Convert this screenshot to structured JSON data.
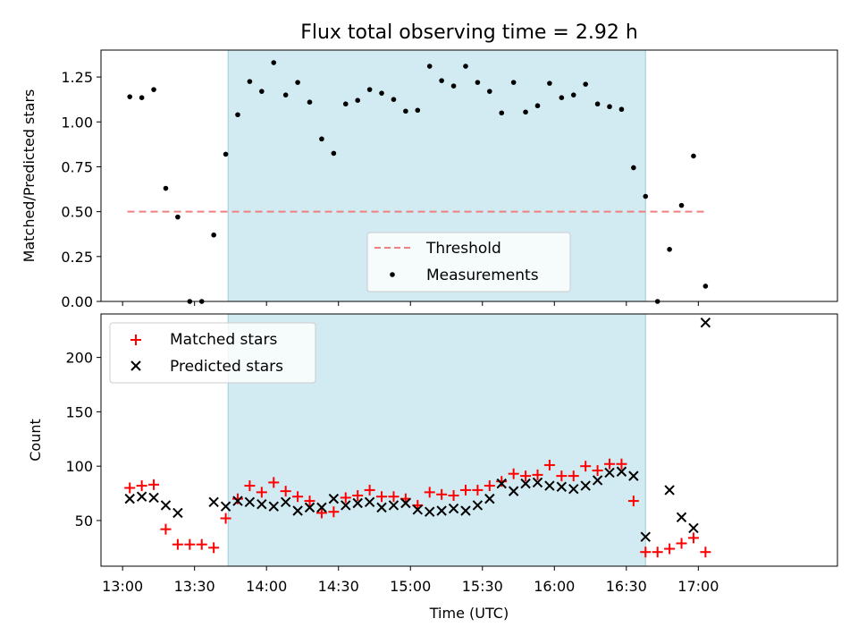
{
  "chart_data": [
    {
      "type": "scatter",
      "title": "Flux total observing time = 2.92 h",
      "xlabel": "",
      "ylabel": "Matched/Predicted stars",
      "ylim": [
        0,
        1.4
      ],
      "yticks": [
        "0.00",
        "0.25",
        "0.50",
        "0.75",
        "1.00",
        "1.25"
      ],
      "ytick_values": [
        0,
        0.25,
        0.5,
        0.75,
        1.0,
        1.25
      ],
      "xlim_minutes": [
        771,
        1078
      ],
      "shaded_span": [
        "13:44",
        "16:38"
      ],
      "shaded_color": "#add8e6",
      "threshold": {
        "name": "Threshold",
        "value": 0.5,
        "from": "13:02",
        "to": "17:03",
        "color": "#f08080"
      },
      "series": [
        {
          "name": "Measurements",
          "marker": "dot",
          "color": "#000000",
          "x": [
            "13:03",
            "13:08",
            "13:13",
            "13:18",
            "13:23",
            "13:28",
            "13:33",
            "13:38",
            "13:43",
            "13:48",
            "13:53",
            "13:58",
            "14:03",
            "14:08",
            "14:13",
            "14:18",
            "14:23",
            "14:28",
            "14:33",
            "14:38",
            "14:43",
            "14:48",
            "14:53",
            "14:58",
            "15:03",
            "15:08",
            "15:13",
            "15:18",
            "15:23",
            "15:28",
            "15:33",
            "15:38",
            "15:43",
            "15:48",
            "15:53",
            "15:58",
            "16:03",
            "16:08",
            "16:13",
            "16:18",
            "16:23",
            "16:28",
            "16:33",
            "16:38",
            "16:43",
            "16:48",
            "16:53",
            "16:58",
            "17:03"
          ],
          "values": [
            1.14,
            1.135,
            1.18,
            0.63,
            0.47,
            0.0,
            0.0,
            0.37,
            0.82,
            1.04,
            1.225,
            1.17,
            1.33,
            1.15,
            1.22,
            1.11,
            0.905,
            0.825,
            1.1,
            1.12,
            1.18,
            1.16,
            1.125,
            1.06,
            1.065,
            1.31,
            1.23,
            1.2,
            1.31,
            1.22,
            1.17,
            1.05,
            1.22,
            1.055,
            1.09,
            1.215,
            1.135,
            1.15,
            1.21,
            1.1,
            1.085,
            1.07,
            0.745,
            0.585,
            0.0,
            0.29,
            0.535,
            0.81,
            0.085
          ]
        }
      ],
      "legend": {
        "entries": [
          "Threshold",
          "Measurements"
        ],
        "placement": "lower-center"
      }
    },
    {
      "type": "scatter",
      "title": "",
      "xlabel": "Time (UTC)",
      "ylabel": "Count",
      "ylim": [
        8,
        240
      ],
      "yticks": [
        "50",
        "100",
        "150",
        "200"
      ],
      "ytick_values": [
        50,
        100,
        150,
        200
      ],
      "xticks": [
        "13:00",
        "13:30",
        "14:00",
        "14:30",
        "15:00",
        "15:30",
        "16:00",
        "16:30",
        "17:00"
      ],
      "xtick_minutes": [
        780,
        810,
        840,
        870,
        900,
        930,
        960,
        990,
        1020
      ],
      "xlim_minutes": [
        771,
        1078
      ],
      "shaded_span": [
        "13:44",
        "16:38"
      ],
      "shaded_color": "#add8e6",
      "series": [
        {
          "name": "Matched stars",
          "marker": "plus",
          "color": "#ff0000",
          "x": [
            "13:03",
            "13:08",
            "13:13",
            "13:18",
            "13:23",
            "13:28",
            "13:33",
            "13:38",
            "13:43",
            "13:48",
            "13:53",
            "13:58",
            "14:03",
            "14:08",
            "14:13",
            "14:18",
            "14:23",
            "14:28",
            "14:33",
            "14:38",
            "14:43",
            "14:48",
            "14:53",
            "14:58",
            "15:03",
            "15:08",
            "15:13",
            "15:18",
            "15:23",
            "15:28",
            "15:33",
            "15:38",
            "15:43",
            "15:48",
            "15:53",
            "15:58",
            "16:03",
            "16:08",
            "16:13",
            "16:18",
            "16:23",
            "16:28",
            "16:33",
            "16:38",
            "16:43",
            "16:48",
            "16:53",
            "16:58",
            "17:03"
          ],
          "values": [
            80,
            82,
            83,
            42,
            28,
            28,
            28,
            25,
            52,
            70,
            82,
            76,
            85,
            77,
            72,
            68,
            57,
            58,
            71,
            73,
            78,
            72,
            72,
            70,
            64,
            76,
            74,
            73,
            78,
            78,
            82,
            86,
            93,
            91,
            92,
            101,
            91,
            91,
            100,
            96,
            102,
            102,
            68,
            21,
            21,
            24,
            29,
            34,
            21
          ]
        },
        {
          "name": "Predicted stars",
          "marker": "x",
          "color": "#000000",
          "x": [
            "13:03",
            "13:08",
            "13:13",
            "13:18",
            "13:23",
            "13:38",
            "13:43",
            "13:48",
            "13:53",
            "13:58",
            "14:03",
            "14:08",
            "14:13",
            "14:18",
            "14:23",
            "14:28",
            "14:33",
            "14:38",
            "14:43",
            "14:48",
            "14:53",
            "14:58",
            "15:03",
            "15:08",
            "15:13",
            "15:18",
            "15:23",
            "15:28",
            "15:33",
            "15:38",
            "15:43",
            "15:48",
            "15:53",
            "15:58",
            "16:03",
            "16:08",
            "16:13",
            "16:18",
            "16:23",
            "16:28",
            "16:33",
            "16:38",
            "16:48",
            "16:53",
            "16:58",
            "17:03"
          ],
          "values": [
            70,
            72,
            71,
            64,
            57,
            67,
            63,
            68,
            67,
            65,
            63,
            67,
            59,
            62,
            62,
            70,
            64,
            66,
            67,
            62,
            64,
            66,
            60,
            58,
            59,
            61,
            59,
            64,
            70,
            84,
            77,
            84,
            85,
            82,
            81,
            79,
            82,
            87,
            94,
            95,
            91,
            35,
            78,
            53,
            43,
            232
          ]
        }
      ],
      "legend": {
        "entries": [
          "Matched stars",
          "Predicted stars"
        ],
        "placement": "upper-left"
      }
    }
  ]
}
